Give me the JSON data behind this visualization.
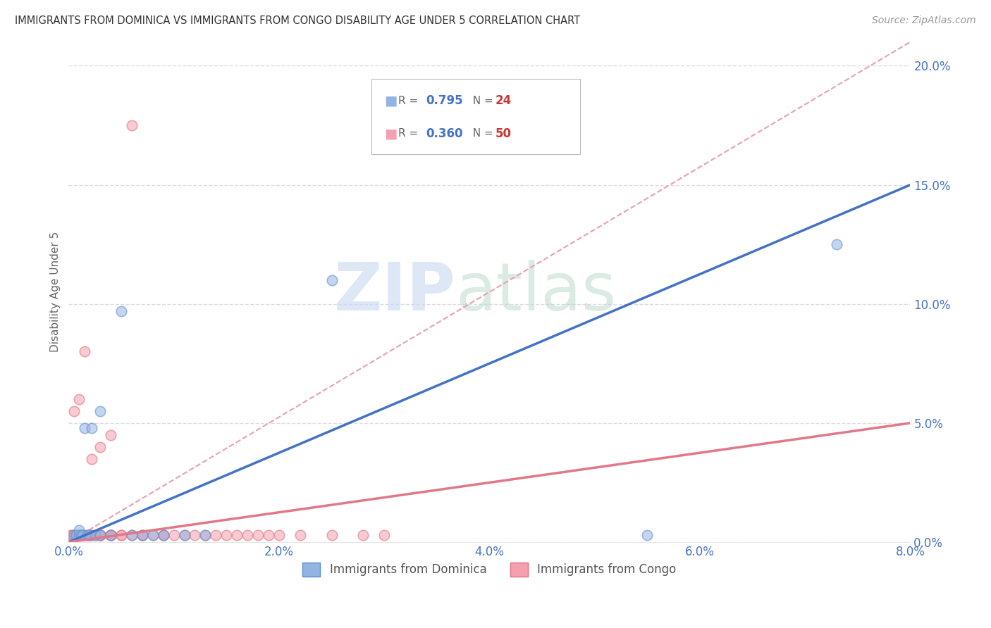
{
  "title": "IMMIGRANTS FROM DOMINICA VS IMMIGRANTS FROM CONGO DISABILITY AGE UNDER 5 CORRELATION CHART",
  "source": "Source: ZipAtlas.com",
  "ylabel": "Disability Age Under 5",
  "xlim": [
    0.0,
    0.08
  ],
  "ylim": [
    0.0,
    0.21
  ],
  "xticks": [
    0.0,
    0.02,
    0.04,
    0.06,
    0.08
  ],
  "yticks": [
    0.0,
    0.05,
    0.1,
    0.15,
    0.2
  ],
  "xtick_labels": [
    "0.0%",
    "2.0%",
    "4.0%",
    "6.0%",
    "8.0%"
  ],
  "ytick_labels": [
    "0.0%",
    "5.0%",
    "10.0%",
    "15.0%",
    "20.0%"
  ],
  "dominica_color": "#92b4e3",
  "dominica_edge_color": "#6090d0",
  "congo_color": "#f4a0b0",
  "congo_edge_color": "#e07080",
  "dominica_line_color": "#4472c4",
  "congo_line_color": "#e07888",
  "ref_line_color": "#e8a0b0",
  "dominica_R": "0.795",
  "dominica_N": "24",
  "congo_R": "0.360",
  "congo_N": "50",
  "background_color": "#ffffff",
  "grid_color": "#dddddd",
  "dominica_scatter_x": [
    0.0005,
    0.0007,
    0.001,
    0.001,
    0.0012,
    0.0013,
    0.0015,
    0.0018,
    0.002,
    0.0022,
    0.0025,
    0.003,
    0.003,
    0.004,
    0.005,
    0.006,
    0.007,
    0.008,
    0.009,
    0.011,
    0.013,
    0.025,
    0.055,
    0.073
  ],
  "dominica_scatter_y": [
    0.003,
    0.003,
    0.003,
    0.005,
    0.003,
    0.003,
    0.048,
    0.003,
    0.003,
    0.048,
    0.003,
    0.003,
    0.055,
    0.003,
    0.097,
    0.003,
    0.003,
    0.003,
    0.003,
    0.003,
    0.003,
    0.11,
    0.003,
    0.125
  ],
  "congo_scatter_x": [
    0.0002,
    0.0003,
    0.0005,
    0.0005,
    0.0007,
    0.0008,
    0.001,
    0.001,
    0.001,
    0.0012,
    0.0015,
    0.0015,
    0.0018,
    0.002,
    0.002,
    0.0022,
    0.0022,
    0.0025,
    0.003,
    0.003,
    0.003,
    0.003,
    0.004,
    0.004,
    0.004,
    0.004,
    0.005,
    0.005,
    0.006,
    0.006,
    0.007,
    0.007,
    0.008,
    0.009,
    0.009,
    0.01,
    0.011,
    0.012,
    0.013,
    0.014,
    0.015,
    0.016,
    0.017,
    0.018,
    0.019,
    0.02,
    0.022,
    0.025,
    0.028,
    0.03
  ],
  "congo_scatter_y": [
    0.003,
    0.003,
    0.003,
    0.055,
    0.003,
    0.003,
    0.003,
    0.06,
    0.003,
    0.003,
    0.003,
    0.08,
    0.003,
    0.003,
    0.003,
    0.035,
    0.003,
    0.003,
    0.003,
    0.04,
    0.003,
    0.003,
    0.045,
    0.003,
    0.003,
    0.003,
    0.003,
    0.003,
    0.003,
    0.175,
    0.003,
    0.003,
    0.003,
    0.003,
    0.003,
    0.003,
    0.003,
    0.003,
    0.003,
    0.003,
    0.003,
    0.003,
    0.003,
    0.003,
    0.003,
    0.003,
    0.003,
    0.003,
    0.003,
    0.003
  ],
  "dom_line_x0": 0.0,
  "dom_line_y0": 0.0,
  "dom_line_x1": 0.08,
  "dom_line_y1": 0.15,
  "con_line_x0": 0.0,
  "con_line_y0": 0.0,
  "con_line_x1": 0.08,
  "con_line_y1": 0.05,
  "ref_line_x0": 0.0,
  "ref_line_y0": 0.0,
  "ref_line_x1": 0.08,
  "ref_line_y1": 0.21
}
